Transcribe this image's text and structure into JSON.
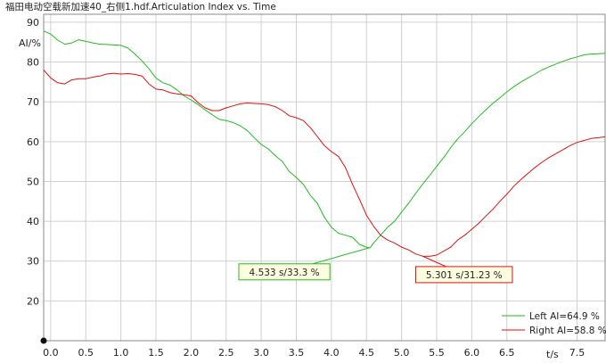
{
  "chart_data": {
    "type": "line",
    "title": "福田电动空载新加速40_右侧1.hdf.Articulation Index vs. Time",
    "xlabel": "t/s",
    "ylabel": "AI/%",
    "xlim": [
      -0.1,
      7.9
    ],
    "ylim": [
      10,
      92
    ],
    "x_ticks": [
      "0.0",
      "0.5",
      "1.0",
      "1.5",
      "2.0",
      "2.5",
      "3.0",
      "3.5",
      "4.0",
      "4.5",
      "5.0",
      "5.5",
      "6.0",
      "6.5",
      "7.5"
    ],
    "x_tick_values": [
      0.0,
      0.5,
      1.0,
      1.5,
      2.0,
      2.5,
      3.0,
      3.5,
      4.0,
      4.5,
      5.0,
      5.5,
      6.0,
      6.5,
      7.5
    ],
    "y_ticks": [
      "20",
      "30",
      "40",
      "50",
      "60",
      "70",
      "80",
      "90"
    ],
    "y_tick_values": [
      20,
      30,
      40,
      50,
      60,
      70,
      80,
      90
    ],
    "grid": true,
    "legend_position": "bottom-right",
    "series": [
      {
        "name": "Left AI=64.9 %",
        "color": "#22bb22",
        "points": [
          [
            -0.1,
            87.8
          ],
          [
            0.0,
            87.0
          ],
          [
            0.1,
            85.5
          ],
          [
            0.2,
            84.5
          ],
          [
            0.3,
            84.8
          ],
          [
            0.4,
            85.6
          ],
          [
            0.5,
            85.2
          ],
          [
            0.6,
            84.8
          ],
          [
            0.7,
            84.5
          ],
          [
            0.8,
            84.4
          ],
          [
            0.9,
            84.3
          ],
          [
            1.0,
            84.2
          ],
          [
            1.1,
            83.5
          ],
          [
            1.2,
            82.0
          ],
          [
            1.3,
            80.3
          ],
          [
            1.4,
            78.3
          ],
          [
            1.5,
            76.0
          ],
          [
            1.6,
            74.8
          ],
          [
            1.7,
            74.2
          ],
          [
            1.8,
            73.0
          ],
          [
            1.9,
            71.5
          ],
          [
            2.0,
            70.5
          ],
          [
            2.1,
            69.3
          ],
          [
            2.2,
            68.0
          ],
          [
            2.3,
            66.8
          ],
          [
            2.4,
            65.6
          ],
          [
            2.5,
            65.3
          ],
          [
            2.6,
            64.8
          ],
          [
            2.7,
            64.0
          ],
          [
            2.8,
            62.8
          ],
          [
            2.9,
            61.0
          ],
          [
            3.0,
            59.3
          ],
          [
            3.1,
            58.2
          ],
          [
            3.2,
            56.5
          ],
          [
            3.3,
            55.0
          ],
          [
            3.4,
            52.5
          ],
          [
            3.5,
            51.0
          ],
          [
            3.6,
            49.3
          ],
          [
            3.7,
            46.5
          ],
          [
            3.8,
            44.5
          ],
          [
            3.9,
            41.0
          ],
          [
            4.0,
            38.5
          ],
          [
            4.1,
            37.0
          ],
          [
            4.2,
            36.5
          ],
          [
            4.3,
            36.0
          ],
          [
            4.4,
            34.2
          ],
          [
            4.5,
            33.5
          ],
          [
            4.55,
            33.3
          ],
          [
            4.6,
            34.5
          ],
          [
            4.7,
            36.5
          ],
          [
            4.8,
            38.5
          ],
          [
            4.9,
            40.0
          ],
          [
            5.0,
            42.3
          ],
          [
            5.1,
            44.5
          ],
          [
            5.2,
            47.0
          ],
          [
            5.3,
            49.3
          ],
          [
            5.4,
            51.5
          ],
          [
            5.5,
            53.8
          ],
          [
            5.6,
            56.0
          ],
          [
            5.7,
            58.5
          ],
          [
            5.8,
            60.7
          ],
          [
            5.9,
            62.5
          ],
          [
            6.0,
            64.5
          ],
          [
            6.1,
            66.3
          ],
          [
            6.2,
            68.0
          ],
          [
            6.3,
            69.6
          ],
          [
            6.4,
            71.0
          ],
          [
            6.5,
            72.5
          ],
          [
            6.6,
            73.8
          ],
          [
            6.7,
            75.0
          ],
          [
            6.8,
            76.0
          ],
          [
            6.9,
            77.0
          ],
          [
            7.0,
            78.0
          ],
          [
            7.1,
            78.8
          ],
          [
            7.2,
            79.5
          ],
          [
            7.3,
            80.2
          ],
          [
            7.4,
            80.8
          ],
          [
            7.5,
            81.3
          ],
          [
            7.6,
            81.8
          ],
          [
            7.7,
            82.0
          ],
          [
            7.8,
            82.1
          ],
          [
            7.9,
            82.2
          ]
        ]
      },
      {
        "name": "Right AI=58.8 %",
        "color": "#dd1111",
        "points": [
          [
            -0.1,
            78.0
          ],
          [
            0.0,
            76.0
          ],
          [
            0.1,
            74.8
          ],
          [
            0.2,
            74.5
          ],
          [
            0.3,
            75.5
          ],
          [
            0.4,
            75.8
          ],
          [
            0.5,
            75.8
          ],
          [
            0.6,
            76.2
          ],
          [
            0.7,
            76.5
          ],
          [
            0.8,
            77.0
          ],
          [
            0.9,
            77.2
          ],
          [
            1.0,
            77.0
          ],
          [
            1.1,
            77.1
          ],
          [
            1.2,
            76.9
          ],
          [
            1.3,
            76.5
          ],
          [
            1.4,
            74.5
          ],
          [
            1.5,
            73.2
          ],
          [
            1.6,
            73.0
          ],
          [
            1.7,
            72.3
          ],
          [
            1.8,
            72.0
          ],
          [
            1.9,
            71.8
          ],
          [
            2.0,
            71.5
          ],
          [
            2.1,
            69.8
          ],
          [
            2.2,
            68.5
          ],
          [
            2.3,
            67.8
          ],
          [
            2.4,
            67.8
          ],
          [
            2.5,
            68.5
          ],
          [
            2.6,
            69.0
          ],
          [
            2.7,
            69.5
          ],
          [
            2.8,
            69.7
          ],
          [
            2.9,
            69.6
          ],
          [
            3.0,
            69.5
          ],
          [
            3.1,
            69.3
          ],
          [
            3.2,
            68.8
          ],
          [
            3.3,
            67.8
          ],
          [
            3.4,
            66.5
          ],
          [
            3.5,
            66.0
          ],
          [
            3.6,
            65.3
          ],
          [
            3.7,
            63.5
          ],
          [
            3.8,
            61.3
          ],
          [
            3.9,
            59.0
          ],
          [
            4.0,
            57.5
          ],
          [
            4.1,
            56.3
          ],
          [
            4.2,
            53.5
          ],
          [
            4.3,
            49.3
          ],
          [
            4.4,
            45.5
          ],
          [
            4.5,
            41.5
          ],
          [
            4.6,
            38.8
          ],
          [
            4.7,
            36.5
          ],
          [
            4.8,
            35.3
          ],
          [
            4.9,
            34.5
          ],
          [
            5.0,
            33.5
          ],
          [
            5.1,
            32.8
          ],
          [
            5.2,
            31.8
          ],
          [
            5.3,
            31.23
          ],
          [
            5.4,
            31.2
          ],
          [
            5.5,
            31.5
          ],
          [
            5.6,
            32.5
          ],
          [
            5.7,
            33.5
          ],
          [
            5.8,
            35.3
          ],
          [
            5.9,
            36.5
          ],
          [
            6.0,
            38.0
          ],
          [
            6.1,
            39.5
          ],
          [
            6.2,
            41.3
          ],
          [
            6.3,
            43.0
          ],
          [
            6.4,
            45.0
          ],
          [
            6.5,
            46.8
          ],
          [
            6.6,
            48.8
          ],
          [
            6.7,
            50.5
          ],
          [
            6.8,
            52.0
          ],
          [
            6.9,
            53.5
          ],
          [
            7.0,
            54.8
          ],
          [
            7.1,
            56.0
          ],
          [
            7.2,
            57.0
          ],
          [
            7.3,
            58.0
          ],
          [
            7.4,
            59.0
          ],
          [
            7.5,
            59.8
          ],
          [
            7.6,
            60.3
          ],
          [
            7.7,
            60.8
          ],
          [
            7.8,
            61.0
          ],
          [
            7.9,
            61.2
          ]
        ]
      }
    ],
    "annotations": [
      {
        "text": "4.533 s/33.3 %",
        "x": 4.533,
        "y": 33.3,
        "series": 0,
        "box_color": "#22bb22",
        "box_at_x": 3.33,
        "box_at_y": 27.3
      },
      {
        "text": "5.301 s/31.23 %",
        "x": 5.301,
        "y": 31.23,
        "series": 1,
        "box_color": "#dd1111",
        "box_at_x": 5.89,
        "box_at_y": 26.6
      }
    ]
  }
}
